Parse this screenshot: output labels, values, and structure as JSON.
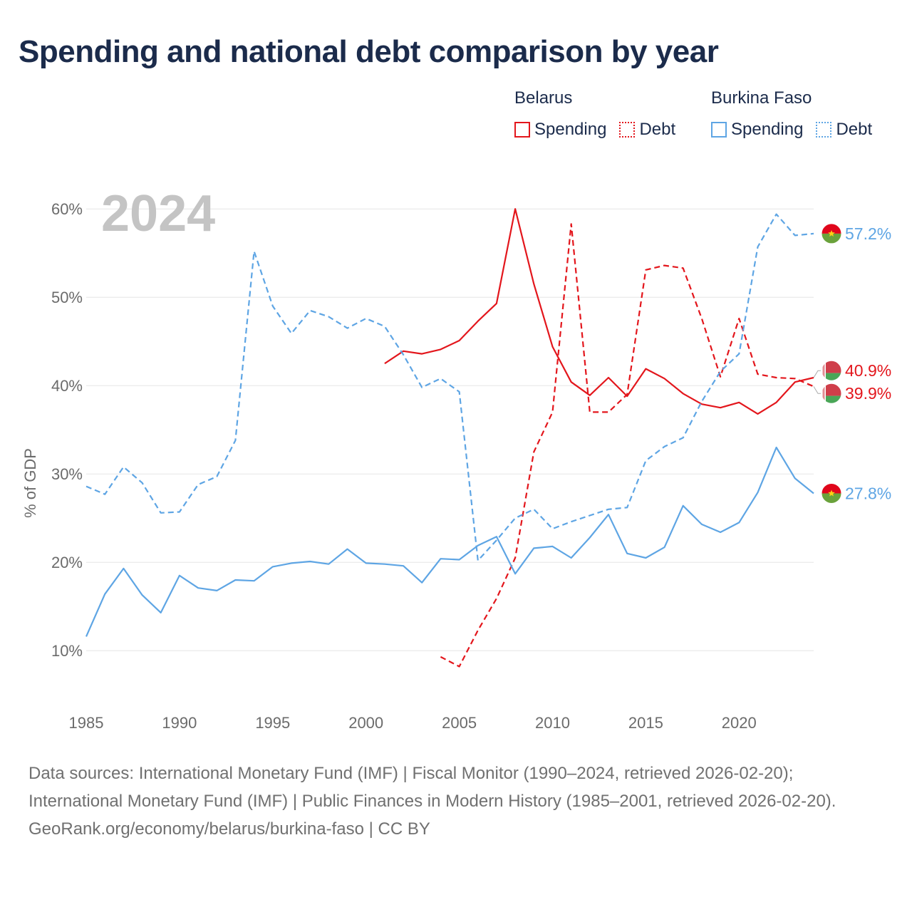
{
  "title": "Spending and national debt comparison by year",
  "legend": {
    "groups": [
      {
        "country": "Belarus",
        "spending_label": "Spending",
        "debt_label": "Debt",
        "color": "#e3161c"
      },
      {
        "country": "Burkina Faso",
        "spending_label": "Spending",
        "debt_label": "Debt",
        "color": "#5ea5e4"
      }
    ]
  },
  "year_label": "2024",
  "footer": {
    "sources_line": "Data sources: International Monetary Fund (IMF) | Fiscal Monitor (1990–2024, retrieved 2026-02-20); International Monetary Fund (IMF) | Public Finances in Modern History (1985–2001, retrieved 2026-02-20).",
    "credit": "GeoRank.org/economy/belarus/burkina-faso | CC BY"
  },
  "chart_data": {
    "type": "line",
    "title": "Spending and national debt comparison by year",
    "xlabel": "",
    "ylabel": "% of GDP",
    "xlim": [
      1985,
      2024
    ],
    "ylim": [
      3,
      63
    ],
    "x_ticks": [
      1985,
      1990,
      1995,
      2000,
      2005,
      2010,
      2015,
      2020
    ],
    "y_ticks": [
      10,
      20,
      30,
      40,
      50,
      60
    ],
    "y_tick_labels": [
      "10%",
      "20%",
      "30%",
      "40%",
      "50%",
      "60%"
    ],
    "grid": true,
    "series": [
      {
        "name": "Belarus Spending",
        "country": "Belarus",
        "flag": "belarus",
        "style": "solid",
        "color": "#e3161c",
        "x": [
          2001,
          2002,
          2003,
          2004,
          2005,
          2006,
          2007,
          2008,
          2009,
          2010,
          2011,
          2012,
          2013,
          2014,
          2015,
          2016,
          2017,
          2018,
          2019,
          2020,
          2021,
          2022,
          2023,
          2024
        ],
        "values": [
          42.5,
          43.9,
          43.6,
          44.1,
          45.1,
          47.3,
          49.3,
          60.0,
          51.5,
          44.4,
          40.4,
          38.9,
          40.9,
          38.8,
          41.9,
          40.8,
          39.1,
          37.9,
          37.5,
          38.1,
          36.8,
          38.1,
          40.4,
          40.9
        ],
        "end_label": "40.9%"
      },
      {
        "name": "Belarus Debt",
        "country": "Belarus",
        "flag": "belarus",
        "style": "dashed",
        "color": "#e3161c",
        "x": [
          2004,
          2005,
          2006,
          2007,
          2008,
          2009,
          2010,
          2011,
          2012,
          2013,
          2014,
          2015,
          2016,
          2017,
          2018,
          2019,
          2020,
          2021,
          2022,
          2023,
          2024
        ],
        "values": [
          9.3,
          8.2,
          12.3,
          15.9,
          20.5,
          32.5,
          37.0,
          58.3,
          37.0,
          37.0,
          39.0,
          53.1,
          53.6,
          53.3,
          47.6,
          41.0,
          47.6,
          41.3,
          40.9,
          40.8,
          39.9
        ],
        "end_label": "39.9%"
      },
      {
        "name": "Burkina Faso Spending",
        "country": "Burkina Faso",
        "flag": "burkina-faso",
        "style": "solid",
        "color": "#5ea5e4",
        "x": [
          1985,
          1986,
          1987,
          1988,
          1989,
          1990,
          1991,
          1992,
          1993,
          1994,
          1995,
          1996,
          1997,
          1998,
          1999,
          2000,
          2001,
          2002,
          2003,
          2004,
          2005,
          2006,
          2007,
          2008,
          2009,
          2010,
          2011,
          2012,
          2013,
          2014,
          2015,
          2016,
          2017,
          2018,
          2019,
          2020,
          2021,
          2022,
          2023,
          2024
        ],
        "values": [
          11.6,
          16.4,
          19.3,
          16.3,
          14.3,
          18.5,
          17.1,
          16.8,
          18.0,
          17.9,
          19.5,
          19.9,
          20.1,
          19.8,
          21.5,
          19.9,
          19.8,
          19.6,
          17.7,
          20.4,
          20.3,
          21.9,
          22.9,
          18.7,
          21.6,
          21.8,
          20.5,
          22.8,
          25.4,
          21.0,
          20.5,
          21.7,
          26.4,
          24.3,
          23.4,
          24.5,
          27.9,
          33.0,
          29.5,
          27.8
        ],
        "end_label": "27.8%"
      },
      {
        "name": "Burkina Faso Debt",
        "country": "Burkina Faso",
        "flag": "burkina-faso",
        "style": "dashed",
        "color": "#5ea5e4",
        "x": [
          1985,
          1986,
          1987,
          1988,
          1989,
          1990,
          1991,
          1992,
          1993,
          1994,
          1995,
          1996,
          1997,
          1998,
          1999,
          2000,
          2001,
          2002,
          2003,
          2004,
          2005,
          2006,
          2007,
          2008,
          2009,
          2010,
          2011,
          2012,
          2013,
          2014,
          2015,
          2016,
          2017,
          2018,
          2019,
          2020,
          2021,
          2022,
          2023,
          2024
        ],
        "values": [
          28.6,
          27.7,
          30.8,
          29.0,
          25.6,
          25.7,
          28.8,
          29.7,
          33.8,
          55.2,
          49.0,
          45.9,
          48.5,
          47.8,
          46.5,
          47.6,
          46.7,
          43.5,
          39.8,
          40.8,
          39.3,
          20.2,
          22.5,
          25.0,
          26.0,
          23.8,
          24.6,
          25.3,
          26.0,
          26.2,
          31.5,
          33.1,
          34.1,
          38.2,
          41.6,
          43.6,
          55.7,
          59.4,
          57.0,
          57.2
        ],
        "end_label": "57.2%"
      }
    ]
  }
}
